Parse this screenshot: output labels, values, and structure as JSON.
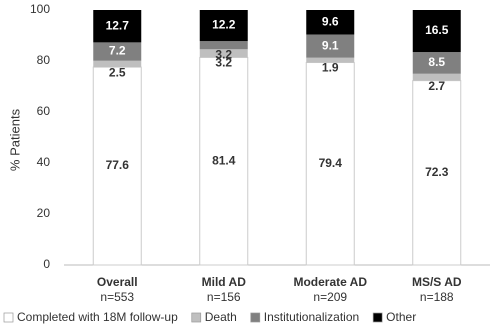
{
  "chart_data": {
    "type": "stacked_bar",
    "y_label": "% Patients",
    "categories": [
      "Overall",
      "Mild AD",
      "Moderate AD",
      "MS/S AD"
    ],
    "category_sublabels": [
      "n=553",
      "n=156",
      "n=209",
      "n=188"
    ],
    "series": [
      {
        "name": "Completed with 18M follow-up",
        "color": "#ffffff",
        "values": [
          77.6,
          81.4,
          79.4,
          72.3
        ]
      },
      {
        "name": "Death",
        "color": "#bfbfbf",
        "values": [
          2.5,
          3.2,
          1.9,
          2.7
        ]
      },
      {
        "name": "Institutionalization",
        "color": "#808080",
        "values": [
          7.2,
          3.2,
          9.1,
          8.5
        ]
      },
      {
        "name": "Other",
        "color": "#000000",
        "values": [
          12.7,
          12.2,
          9.6,
          16.5
        ]
      }
    ],
    "ylim": [
      0,
      100
    ],
    "yticks": [
      0,
      20,
      40,
      60,
      80,
      100
    ],
    "grid": false,
    "legend": "bottom"
  }
}
